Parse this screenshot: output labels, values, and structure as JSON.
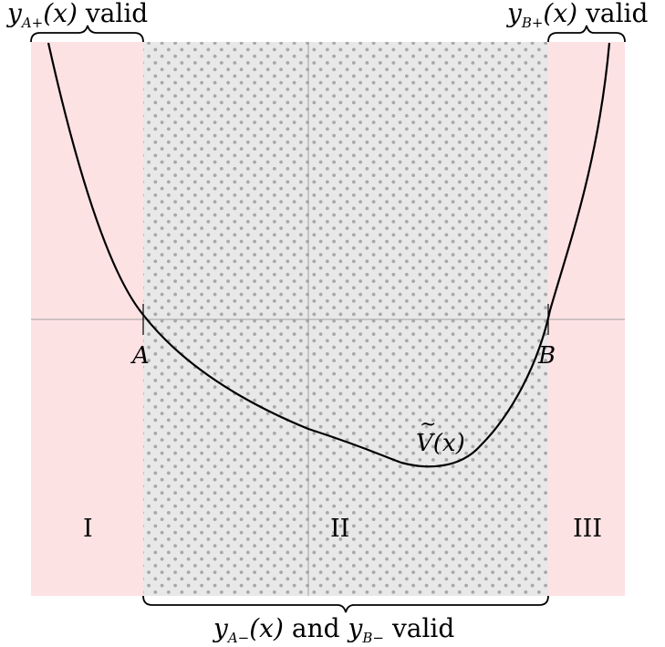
{
  "colors": {
    "outer_region": "#fde2e4",
    "middle_region": "#e8e8e8",
    "dots": "#a8a8a8",
    "axes": "#a0a0a0",
    "curve": "#000000",
    "brace": "#000000"
  },
  "labels": {
    "top_left": {
      "y": "y",
      "sub": "A+",
      "arg": "(x)",
      "word": "valid"
    },
    "top_right": {
      "y": "y",
      "sub": "B+",
      "arg": "(x)",
      "word": "valid"
    },
    "bottom": {
      "y1": "y",
      "sub1": "A−",
      "arg": "(x)",
      "and": "and",
      "y2": "y",
      "sub2": "B−",
      "word": "valid"
    },
    "point_a": "A",
    "point_b": "B",
    "curve_name": "V",
    "curve_tilde": "~",
    "curve_arg": "(x)"
  },
  "regions": [
    "I",
    "II",
    "III"
  ]
}
